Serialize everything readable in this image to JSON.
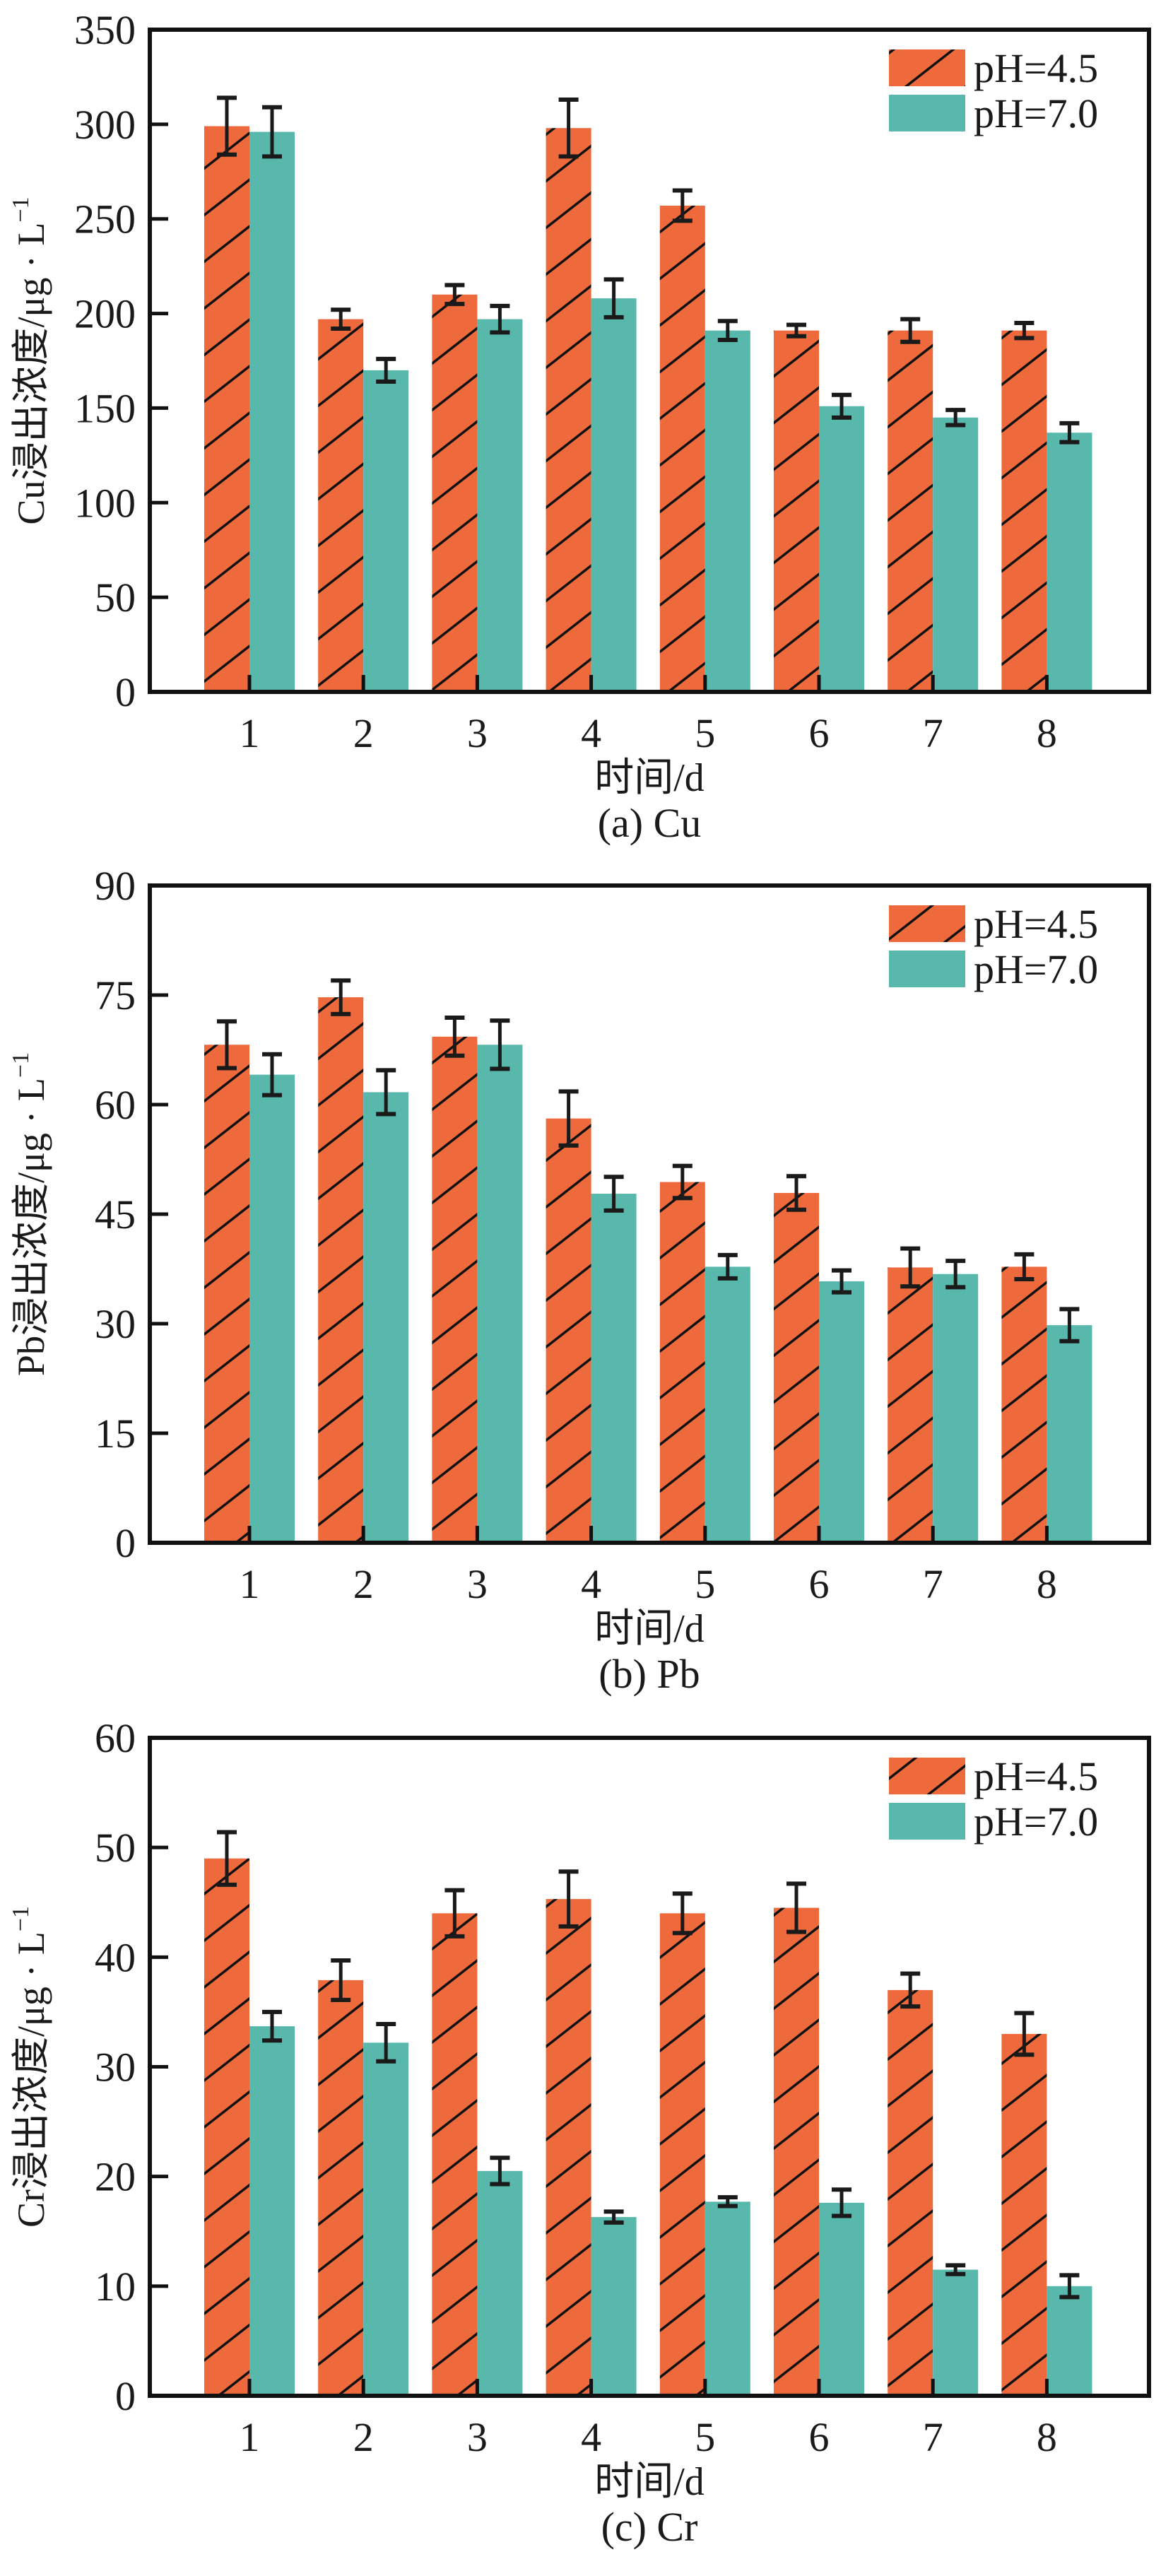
{
  "colors": {
    "series_acid": "#EE6A3C",
    "series_neutral": "#58B8AC",
    "hatch": "#111111",
    "axis": "#111111",
    "error_bar": "#1a1a1a"
  },
  "legend": {
    "items": [
      {
        "label": "pH=4.5",
        "pattern": "hatched"
      },
      {
        "label": "pH=7.0",
        "pattern": "solid"
      }
    ]
  },
  "chart_data": [
    {
      "type": "bar",
      "panel": "a",
      "title": "",
      "caption": "(a) Cu",
      "xlabel": "时间/d",
      "ylabel": "Cu浸出浓度/μg · L⁻¹",
      "ylabel_main": "Cu浸出浓度/μg · L",
      "ylabel_sup": "−1",
      "categories": [
        "1",
        "2",
        "3",
        "4",
        "5",
        "6",
        "7",
        "8"
      ],
      "ylim": [
        0,
        350
      ],
      "yticks": [
        0,
        50,
        100,
        150,
        200,
        250,
        300,
        350
      ],
      "grid": false,
      "legend_position": "top-right",
      "series": [
        {
          "name": "pH=4.5",
          "values": [
            299,
            197,
            210,
            298,
            257,
            191,
            191,
            191
          ],
          "errors": [
            15,
            5,
            5,
            15,
            8,
            3,
            6,
            4
          ]
        },
        {
          "name": "pH=7.0",
          "values": [
            296,
            170,
            197,
            208,
            191,
            151,
            145,
            137
          ],
          "errors": [
            13,
            6,
            7,
            10,
            5,
            6,
            4,
            5
          ]
        }
      ]
    },
    {
      "type": "bar",
      "panel": "b",
      "title": "",
      "caption": "(b) Pb",
      "xlabel": "时间/d",
      "ylabel": "Pb浸出浓度/μg · L⁻¹",
      "ylabel_main": "Pb浸出浓度/μg · L",
      "ylabel_sup": "−1",
      "categories": [
        "1",
        "2",
        "3",
        "4",
        "5",
        "6",
        "7",
        "8"
      ],
      "ylim": [
        0,
        90
      ],
      "yticks": [
        0,
        15,
        30,
        45,
        60,
        75,
        90
      ],
      "grid": false,
      "legend_position": "top-right",
      "series": [
        {
          "name": "pH=4.5",
          "values": [
            68.2,
            74.7,
            69.3,
            58.1,
            49.4,
            47.9,
            37.7,
            37.8
          ],
          "errors": [
            3.2,
            2.3,
            2.6,
            3.7,
            2.2,
            2.3,
            2.6,
            1.7
          ]
        },
        {
          "name": "pH=7.0",
          "values": [
            64.1,
            61.7,
            68.2,
            47.8,
            37.8,
            35.8,
            36.8,
            29.8
          ],
          "errors": [
            2.8,
            3.0,
            3.3,
            2.3,
            1.6,
            1.5,
            1.8,
            2.2
          ]
        }
      ]
    },
    {
      "type": "bar",
      "panel": "c",
      "title": "",
      "caption": "(c) Cr",
      "xlabel": "时间/d",
      "ylabel": "Cr浸出浓度/μg · L⁻¹",
      "ylabel_main": "Cr浸出浓度/μg · L",
      "ylabel_sup": "−1",
      "categories": [
        "1",
        "2",
        "3",
        "4",
        "5",
        "6",
        "7",
        "8"
      ],
      "ylim": [
        0,
        60
      ],
      "yticks": [
        0,
        10,
        20,
        30,
        40,
        50,
        60
      ],
      "grid": false,
      "legend_position": "top-right",
      "series": [
        {
          "name": "pH=4.5",
          "values": [
            49.0,
            37.9,
            44.0,
            45.3,
            44.0,
            44.5,
            37.0,
            33.0
          ],
          "errors": [
            2.4,
            1.8,
            2.1,
            2.5,
            1.8,
            2.2,
            1.5,
            1.9
          ]
        },
        {
          "name": "pH=7.0",
          "values": [
            33.7,
            32.2,
            20.5,
            16.3,
            17.7,
            17.6,
            11.5,
            10.0
          ],
          "errors": [
            1.3,
            1.7,
            1.2,
            0.5,
            0.4,
            1.2,
            0.4,
            1.0
          ]
        }
      ]
    }
  ]
}
